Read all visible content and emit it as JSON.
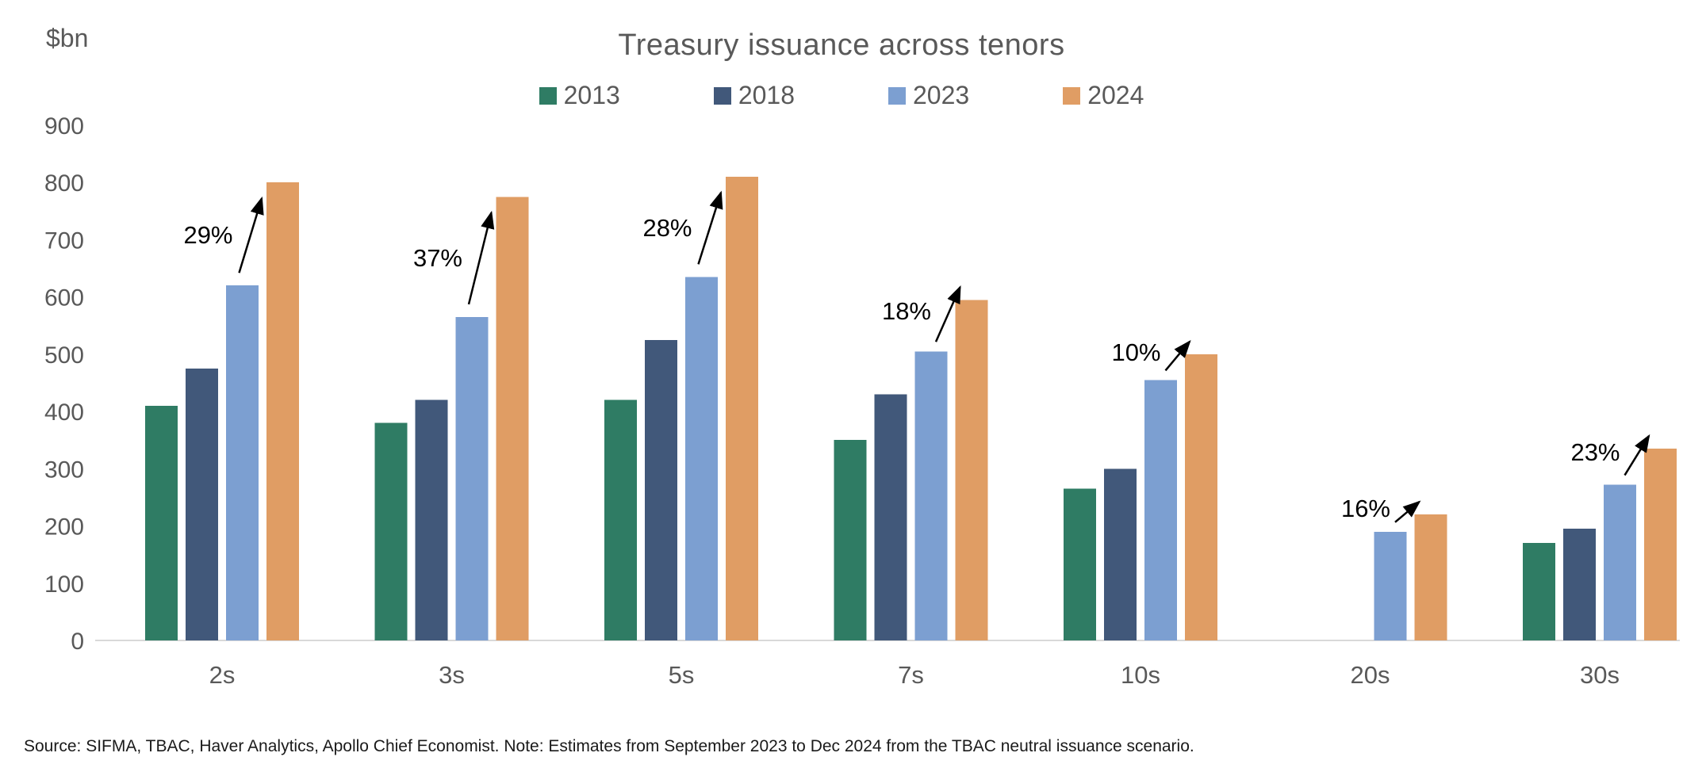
{
  "header": {
    "unit_label": "$bn",
    "title": "Treasury issuance across tenors"
  },
  "footnote": "Source: SIFMA, TBAC, Haver Analytics, Apollo Chief Economist. Note: Estimates from September 2023 to Dec 2024 from the TBAC neutral issuance scenario.",
  "colors": {
    "series_2013": "#2F7C64",
    "series_2018": "#41587A",
    "series_2023": "#7C9FD1",
    "series_2024": "#E09D64",
    "axis_line": "#D9D9D9",
    "axis_text": "#595959",
    "annotation": "#000000",
    "background": "#FFFFFF"
  },
  "chart_data": {
    "type": "bar",
    "title": "Treasury issuance across tenors",
    "unit": "$bn",
    "categories": [
      "2s",
      "3s",
      "5s",
      "7s",
      "10s",
      "20s",
      "30s"
    ],
    "series": [
      {
        "name": "2013",
        "color": "#2F7C64",
        "values": [
          410,
          380,
          420,
          350,
          265,
          null,
          170
        ]
      },
      {
        "name": "2018",
        "color": "#41587A",
        "values": [
          475,
          420,
          525,
          430,
          300,
          null,
          195
        ]
      },
      {
        "name": "2023",
        "color": "#7C9FD1",
        "values": [
          620,
          565,
          635,
          505,
          455,
          190,
          272
        ]
      },
      {
        "name": "2024",
        "color": "#E09D64",
        "values": [
          800,
          775,
          810,
          595,
          500,
          220,
          335
        ]
      }
    ],
    "annotations": [
      {
        "category": "2s",
        "label": "29%"
      },
      {
        "category": "3s",
        "label": "37%"
      },
      {
        "category": "5s",
        "label": "28%"
      },
      {
        "category": "7s",
        "label": "18%"
      },
      {
        "category": "10s",
        "label": "10%"
      },
      {
        "category": "20s",
        "label": "16%"
      },
      {
        "category": "30s",
        "label": "23%"
      }
    ],
    "annotation_note": "percent increase from 2023 to 2024 bar, drawn with an up-right arrow",
    "ylabel": "$bn",
    "xlabel": "",
    "ylim": [
      0,
      900
    ],
    "ytick_step": 100,
    "grid": false,
    "legend_position": "top-center"
  }
}
